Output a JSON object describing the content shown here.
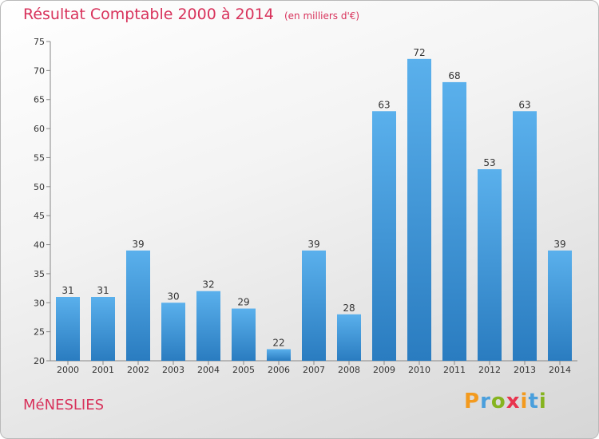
{
  "chart_data": {
    "type": "bar",
    "title": "Résultat Comptable 2000 à 2014",
    "subtitle": "(en milliers d'€)",
    "categories": [
      "2000",
      "2001",
      "2002",
      "2003",
      "2004",
      "2005",
      "2006",
      "2007",
      "2008",
      "2009",
      "2010",
      "2011",
      "2012",
      "2013",
      "2014"
    ],
    "values": [
      31,
      31,
      39,
      30,
      32,
      29,
      22,
      39,
      28,
      63,
      72,
      68,
      53,
      63,
      39
    ],
    "ylim": [
      20,
      75
    ],
    "yticks": [
      20,
      25,
      30,
      35,
      40,
      45,
      50,
      55,
      60,
      65,
      70,
      75
    ],
    "grid": false,
    "bar_color": "#3f97dd"
  },
  "footer": {
    "commune": "MéNESLIES",
    "logo_letters": [
      "P",
      "r",
      "o",
      "x",
      "i",
      "t",
      "i"
    ],
    "logo_colors": [
      "#f39a1e",
      "#4a9fdc",
      "#86b41f",
      "#e8344e",
      "#f39a1e",
      "#4a9fdc",
      "#86b41f"
    ]
  }
}
